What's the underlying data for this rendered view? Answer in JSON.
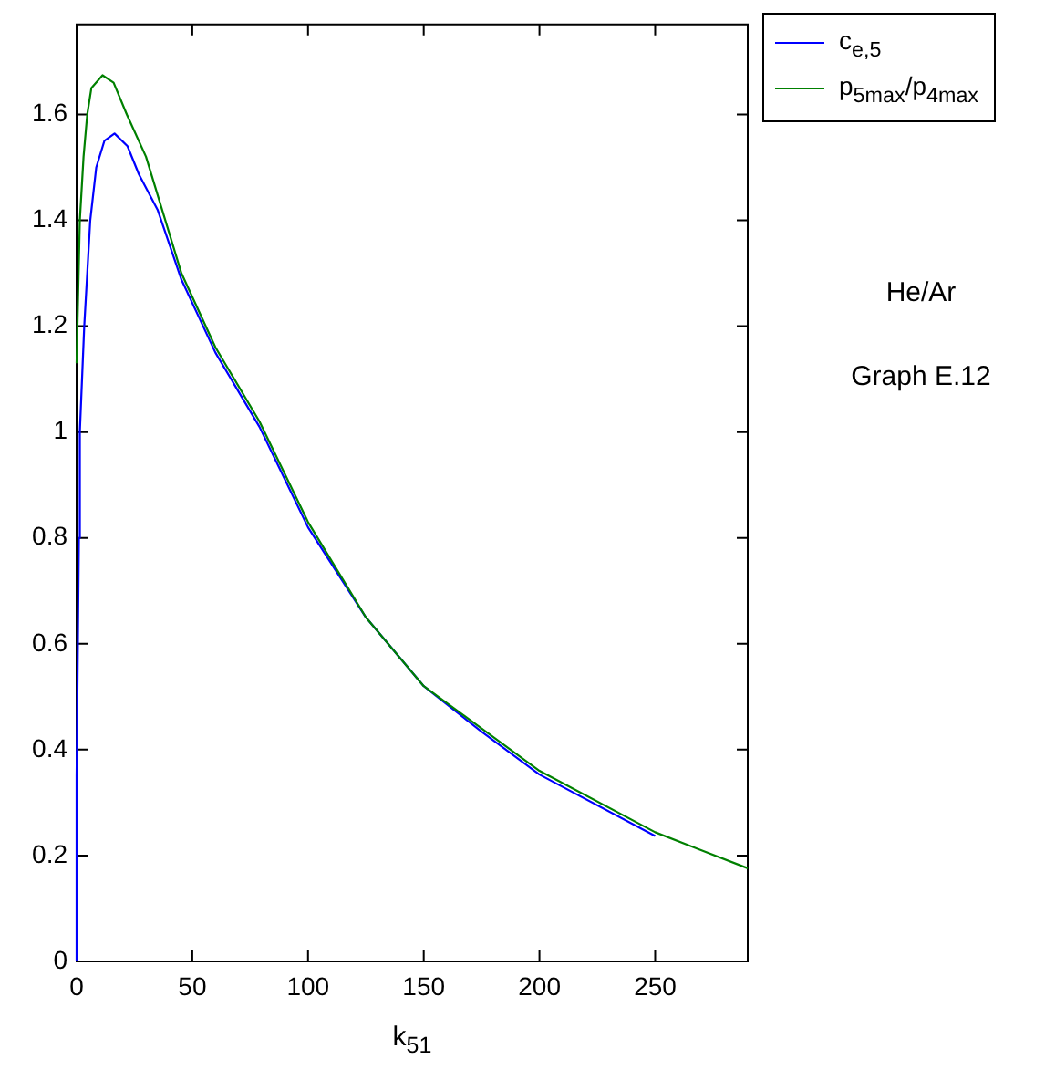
{
  "chart_data": {
    "type": "line",
    "xlabel": "k$_{51}$",
    "annotations": [
      "He/Ar",
      "Graph E.12"
    ],
    "xlim": [
      0,
      290
    ],
    "xticks": [
      0,
      50,
      100,
      150,
      200,
      250
    ],
    "ylim": [
      0,
      1.77
    ],
    "yticks": [
      0,
      0.2,
      0.4,
      0.6,
      0.8,
      1,
      1.2,
      1.4,
      1.6
    ],
    "legend": "top right",
    "marker": "none",
    "line_style": "solid",
    "series": [
      {
        "name": "c$_{e,5}$",
        "color": "#0000ff",
        "x": [
          0,
          0,
          1,
          1.4,
          3.3,
          5.9,
          8.5,
          12,
          16.4,
          22,
          26.9,
          35,
          45.3,
          60,
          79,
          100,
          125,
          150,
          175,
          200,
          250
        ],
        "values": [
          0,
          0.35,
          0.8,
          1.0,
          1.2,
          1.4,
          1.5,
          1.55,
          1.564,
          1.54,
          1.487,
          1.42,
          1.288,
          1.15,
          1.01,
          0.82,
          0.65,
          0.52,
          0.434,
          0.353,
          0.237
        ]
      },
      {
        "name": "p$_{5max}$/p$_{4max}$",
        "color": "#008000",
        "x": [
          0,
          1.4,
          3,
          4.6,
          6.4,
          11.2,
          16,
          21.7,
          30,
          45.3,
          60,
          79,
          100,
          125,
          150,
          175,
          200,
          250,
          290
        ],
        "values": [
          1.13,
          1.4,
          1.52,
          1.6,
          1.65,
          1.674,
          1.66,
          1.6,
          1.52,
          1.3,
          1.16,
          1.02,
          0.83,
          0.65,
          0.52,
          0.44,
          0.36,
          0.244,
          0.176
        ]
      }
    ]
  }
}
